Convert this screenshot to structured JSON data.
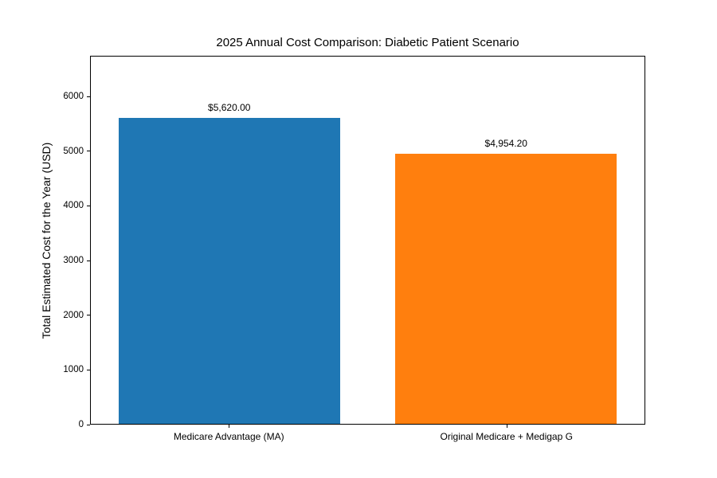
{
  "chart_data": {
    "type": "bar",
    "title": "2025 Annual Cost Comparison: Diabetic Patient Scenario",
    "xlabel": "",
    "ylabel": "Total Estimated Cost for the Year (USD)",
    "categories": [
      "Medicare Advantage (MA)",
      "Original Medicare + Medigap G"
    ],
    "values": [
      5620.0,
      4954.2
    ],
    "value_labels": [
      "$5,620.00",
      "$4,954.20"
    ],
    "bar_colors": [
      "#1f77b4",
      "#ff7f0e"
    ],
    "ylim": [
      0,
      6744
    ],
    "yticks": [
      0,
      1000,
      2000,
      3000,
      4000,
      5000,
      6000
    ],
    "bar_width_fraction": 0.8,
    "grid": false,
    "legend_position": "none"
  },
  "colors": {
    "background": "#ffffff",
    "axis_frame": "#000000",
    "text": "#000000"
  }
}
